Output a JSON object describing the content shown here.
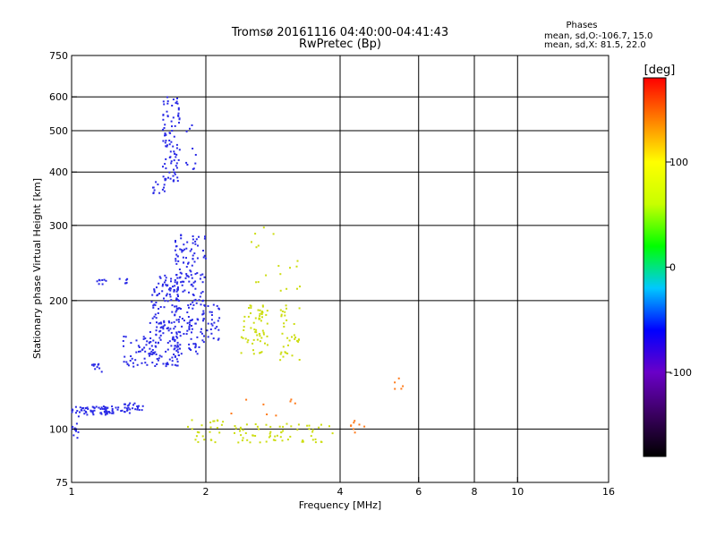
{
  "chart_data": {
    "type": "scatter",
    "title": "Tromsø 20161116 04:40:00-04:41:43",
    "subtitle": "RwPretec (Bp)",
    "xlabel": "Frequency [MHz]",
    "ylabel": "Stationary phase Virtual Height [km]",
    "x_scale": "log",
    "y_scale": "log",
    "xlim": [
      1,
      16
    ],
    "ylim": [
      75,
      750
    ],
    "x_ticks": [
      "1",
      "2",
      "4",
      "6",
      "8",
      "10",
      "16"
    ],
    "y_ticks": [
      "75",
      "100",
      "200",
      "300",
      "400",
      "500",
      "600",
      "750"
    ],
    "grid": true,
    "stats_title": "Phases",
    "stats_lines": [
      "mean, sd,O:-106.7, 15.0",
      "mean, sd,X:  81.5, 22.0"
    ],
    "colorbar": {
      "label": "[deg]",
      "range": [
        -180,
        180
      ],
      "ticks": [
        "100",
        "0",
        "-100"
      ],
      "colors": [
        "#000000",
        "#3a0060",
        "#6a00c8",
        "#0000ff",
        "#00c8ff",
        "#00ff00",
        "#c8ff00",
        "#ffff00",
        "#ff8000",
        "#ff0000"
      ]
    },
    "series": [
      {
        "color": "#2a2ae6",
        "clusters": [
          {
            "f": [
              1.0,
              1.3
            ],
            "h": [
              108,
              113
            ],
            "n": 70
          },
          {
            "f": [
              1.3,
              1.45
            ],
            "h": [
              109,
              115
            ],
            "n": 25
          },
          {
            "f": [
              1.0,
              1.04
            ],
            "h": [
              95,
              108
            ],
            "n": 12
          },
          {
            "f": [
              1.1,
              1.17
            ],
            "h": [
              136,
              142
            ],
            "n": 10
          },
          {
            "f": [
              1.14,
              1.2
            ],
            "h": [
              218,
              224
            ],
            "n": 8
          },
          {
            "f": [
              1.25,
              1.35
            ],
            "h": [
              218,
              226
            ],
            "n": 6
          },
          {
            "f": [
              1.3,
              1.55
            ],
            "h": [
              140,
              165
            ],
            "n": 50
          },
          {
            "f": [
              1.5,
              1.75
            ],
            "h": [
              140,
              230
            ],
            "n": 170
          },
          {
            "f": [
              1.7,
              2.0
            ],
            "h": [
              150,
              290
            ],
            "n": 190
          },
          {
            "f": [
              2.0,
              2.15
            ],
            "h": [
              160,
              200
            ],
            "n": 25
          },
          {
            "f": [
              1.52,
              1.62
            ],
            "h": [
              355,
              380
            ],
            "n": 12
          },
          {
            "f": [
              1.6,
              1.75
            ],
            "h": [
              380,
              600
            ],
            "n": 90
          },
          {
            "f": [
              1.8,
              1.9
            ],
            "h": [
              400,
              520
            ],
            "n": 10
          }
        ]
      },
      {
        "color": "#ccdd10",
        "clusters": [
          {
            "f": [
              2.4,
              2.75
            ],
            "h": [
              150,
              200
            ],
            "n": 60
          },
          {
            "f": [
              2.9,
              3.25
            ],
            "h": [
              145,
              200
            ],
            "n": 35
          },
          {
            "f": [
              2.5,
              3.3
            ],
            "h": [
              210,
              300
            ],
            "n": 18
          },
          {
            "f": [
              1.8,
              2.2
            ],
            "h": [
              93,
              105
            ],
            "n": 25
          },
          {
            "f": [
              2.3,
              3.0
            ],
            "h": [
              93,
              103
            ],
            "n": 40
          },
          {
            "f": [
              3.0,
              3.9
            ],
            "h": [
              93,
              103
            ],
            "n": 25
          }
        ]
      },
      {
        "color": "#ff7a1a",
        "clusters": [
          {
            "f": [
              4.2,
              4.6
            ],
            "h": [
              96,
              108
            ],
            "n": 8
          },
          {
            "f": [
              5.3,
              5.7
            ],
            "h": [
              120,
              135
            ],
            "n": 5
          },
          {
            "f": [
              2.1,
              3.2
            ],
            "h": [
              105,
              118
            ],
            "n": 8
          }
        ]
      }
    ]
  }
}
